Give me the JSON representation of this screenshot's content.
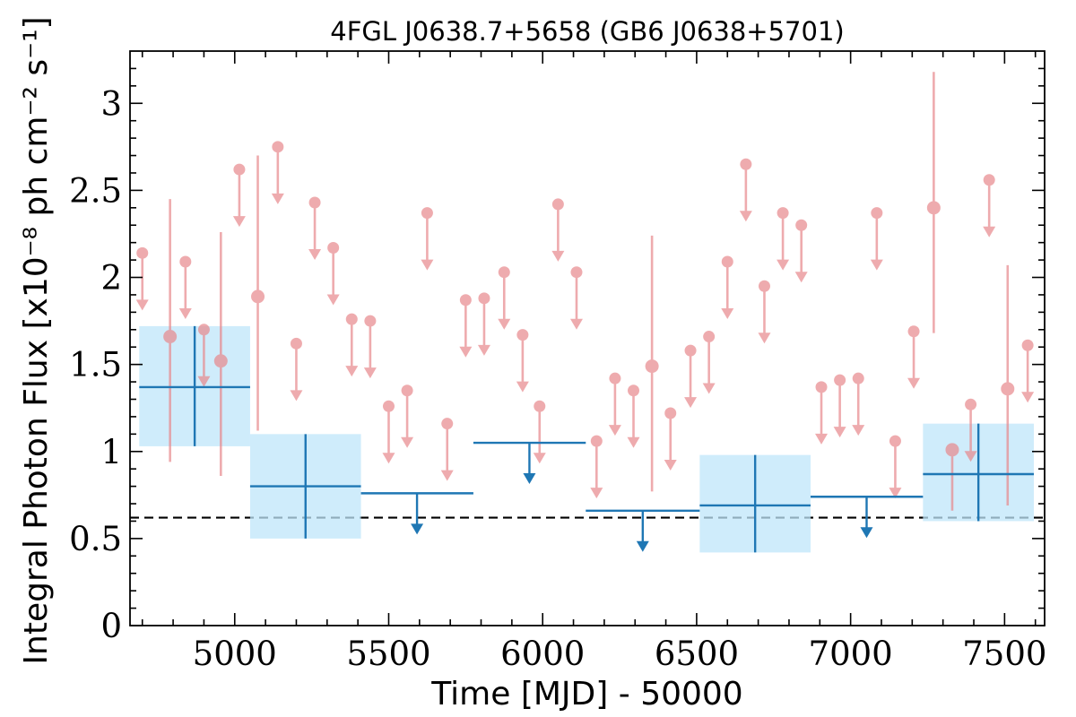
{
  "chart_data": {
    "type": "scatter",
    "title": "4FGL J0638.7+5658 (GB6 J0638+5701)",
    "xlabel": "Time [MJD] - 50000",
    "ylabel": "Integral Photon Flux [x10⁻⁸ ph cm⁻² s⁻¹]",
    "xlim": [
      4660,
      7630
    ],
    "ylim": [
      0,
      3.3
    ],
    "xticks": [
      5000,
      5500,
      6000,
      6500,
      7000,
      7500
    ],
    "xtick_labels": [
      "5000",
      "5500",
      "6000",
      "6500",
      "7000",
      "7500"
    ],
    "yticks": [
      0,
      0.5,
      1,
      1.5,
      2,
      2.5,
      3
    ],
    "ytick_labels": [
      "0",
      "0.5",
      "1",
      "1.5",
      "2",
      "2.5",
      "3"
    ],
    "reference_line": {
      "y": 0.62,
      "style": "dashed",
      "color": "#000000"
    },
    "colors": {
      "short_bins": "#e8888c",
      "long_bins": "#1f77b4",
      "long_band": "#bfe6fa"
    },
    "short_bins_detections": [
      {
        "x": 4790,
        "y": 1.66,
        "ylo": 0.94,
        "yhi": 2.45
      },
      {
        "x": 4955,
        "y": 1.52,
        "ylo": 0.86,
        "yhi": 2.26
      },
      {
        "x": 5075,
        "y": 1.89,
        "ylo": 1.12,
        "yhi": 2.7
      },
      {
        "x": 6355,
        "y": 1.49,
        "ylo": 0.77,
        "yhi": 2.24
      },
      {
        "x": 7270,
        "y": 2.4,
        "ylo": 1.68,
        "yhi": 3.18
      },
      {
        "x": 7330,
        "y": 1.01,
        "ylo": 0.66,
        "yhi": 1.01
      },
      {
        "x": 7510,
        "y": 1.36,
        "ylo": 0.69,
        "yhi": 2.07
      }
    ],
    "short_bins_upper_limits": [
      {
        "x": 4700,
        "y": 2.14
      },
      {
        "x": 4840,
        "y": 2.09
      },
      {
        "x": 4900,
        "y": 1.7
      },
      {
        "x": 5015,
        "y": 2.62
      },
      {
        "x": 5140,
        "y": 2.75
      },
      {
        "x": 5200,
        "y": 1.62
      },
      {
        "x": 5260,
        "y": 2.43
      },
      {
        "x": 5320,
        "y": 2.17
      },
      {
        "x": 5380,
        "y": 1.76
      },
      {
        "x": 5440,
        "y": 1.75
      },
      {
        "x": 5500,
        "y": 1.26
      },
      {
        "x": 5560,
        "y": 1.35
      },
      {
        "x": 5625,
        "y": 2.37
      },
      {
        "x": 5690,
        "y": 1.16
      },
      {
        "x": 5750,
        "y": 1.87
      },
      {
        "x": 5810,
        "y": 1.88
      },
      {
        "x": 5875,
        "y": 2.03
      },
      {
        "x": 5935,
        "y": 1.67
      },
      {
        "x": 5990,
        "y": 1.26
      },
      {
        "x": 6050,
        "y": 2.42
      },
      {
        "x": 6110,
        "y": 2.03
      },
      {
        "x": 6175,
        "y": 1.06
      },
      {
        "x": 6235,
        "y": 1.42
      },
      {
        "x": 6295,
        "y": 1.35
      },
      {
        "x": 6415,
        "y": 1.22
      },
      {
        "x": 6480,
        "y": 1.58
      },
      {
        "x": 6540,
        "y": 1.66
      },
      {
        "x": 6600,
        "y": 2.09
      },
      {
        "x": 6660,
        "y": 2.65
      },
      {
        "x": 6720,
        "y": 1.95
      },
      {
        "x": 6780,
        "y": 2.37
      },
      {
        "x": 6840,
        "y": 2.3
      },
      {
        "x": 6905,
        "y": 1.37
      },
      {
        "x": 6965,
        "y": 1.41
      },
      {
        "x": 7025,
        "y": 1.42
      },
      {
        "x": 7085,
        "y": 2.37
      },
      {
        "x": 7145,
        "y": 1.06
      },
      {
        "x": 7205,
        "y": 1.69
      },
      {
        "x": 7390,
        "y": 1.27
      },
      {
        "x": 7450,
        "y": 2.56
      },
      {
        "x": 7575,
        "y": 1.61
      }
    ],
    "long_bins_detections": [
      {
        "x0": 4690,
        "x1": 5050,
        "xc": 4870,
        "y": 1.37,
        "ylo": 1.03,
        "yhi": 1.72
      },
      {
        "x0": 5050,
        "x1": 5410,
        "xc": 5230,
        "y": 0.8,
        "ylo": 0.5,
        "yhi": 1.1
      },
      {
        "x0": 6510,
        "x1": 6870,
        "xc": 6690,
        "y": 0.69,
        "ylo": 0.42,
        "yhi": 0.98
      },
      {
        "x0": 7235,
        "x1": 7595,
        "xc": 7415,
        "y": 0.87,
        "ylo": 0.6,
        "yhi": 1.16
      }
    ],
    "long_bins_upper_limits": [
      {
        "x0": 5410,
        "x1": 5775,
        "xc": 5592,
        "y": 0.76
      },
      {
        "x0": 5775,
        "x1": 6140,
        "xc": 5957,
        "y": 1.05
      },
      {
        "x0": 6140,
        "x1": 6510,
        "xc": 6325,
        "y": 0.66
      },
      {
        "x0": 6870,
        "x1": 7235,
        "xc": 7052,
        "y": 0.74
      }
    ]
  }
}
